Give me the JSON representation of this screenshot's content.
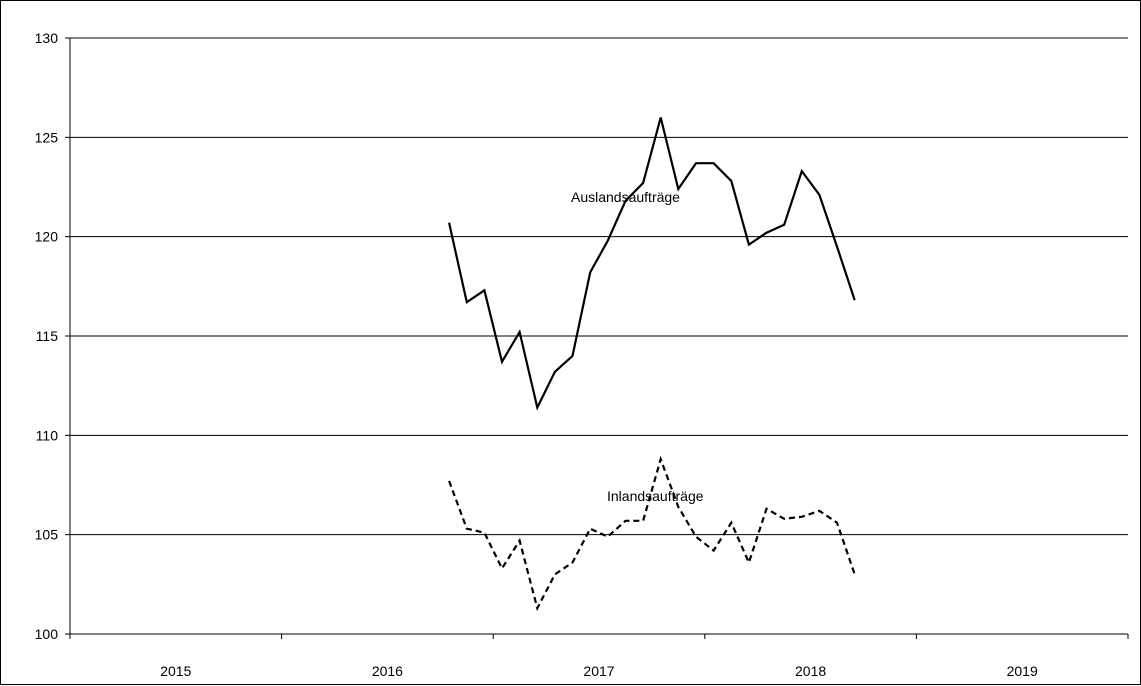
{
  "chart_data": {
    "type": "line",
    "title": "",
    "xlabel": "",
    "ylabel": "",
    "ylim": [
      100,
      130
    ],
    "yticks": [
      "100",
      "105",
      "110",
      "115",
      "120",
      "125",
      "130"
    ],
    "year_labels": [
      "2015",
      "2016",
      "2017",
      "2018",
      "2019"
    ],
    "grid": true,
    "x_axis": {
      "start": "2015-01",
      "end": "2019-12"
    },
    "x": [
      "2016-10",
      "2016-11",
      "2016-12",
      "2017-01",
      "2017-02",
      "2017-03",
      "2017-04",
      "2017-05",
      "2017-06",
      "2017-07",
      "2017-08",
      "2017-09",
      "2017-10",
      "2017-11",
      "2017-12",
      "2018-01",
      "2018-02",
      "2018-03",
      "2018-04",
      "2018-05",
      "2018-06",
      "2018-07",
      "2018-08",
      "2018-09",
      "2018-10",
      "2018-11",
      "2018-12",
      "2019-01",
      "2019-02",
      "2019-03",
      "2019-04",
      "2019-05",
      "2019-06",
      "2019-07",
      "2019-08",
      "2019-09"
    ],
    "series": [
      {
        "name": "Auslandsaufträge",
        "style": "solid",
        "values": [
          120.7,
          116.7,
          117.3,
          113.7,
          115.2,
          111.4,
          113.2,
          114.0,
          118.2,
          119.8,
          121.8,
          122.7,
          126.0,
          122.4,
          123.7,
          123.7,
          122.8,
          119.6,
          120.2,
          120.6,
          123.3,
          122.1,
          119.5,
          116.8,
          null,
          null,
          null,
          null,
          null,
          null,
          null,
          null,
          null,
          null,
          null,
          null
        ]
      },
      {
        "name": "Inlandsaufträge",
        "style": "dashed",
        "values": [
          107.7,
          105.3,
          105.1,
          103.3,
          104.7,
          101.3,
          103.0,
          103.6,
          105.3,
          104.9,
          105.7,
          105.7,
          108.8,
          106.4,
          104.9,
          104.2,
          105.6,
          103.6,
          106.3,
          105.8,
          105.9,
          106.2,
          105.6,
          103.0,
          null,
          null,
          null,
          null,
          null,
          null,
          null,
          null,
          null,
          null,
          null,
          null
        ]
      }
    ],
    "annotations": [
      {
        "text": "Auslandsaufträge",
        "series": 0
      },
      {
        "text": "Inlandsaufträge",
        "series": 1
      }
    ]
  }
}
